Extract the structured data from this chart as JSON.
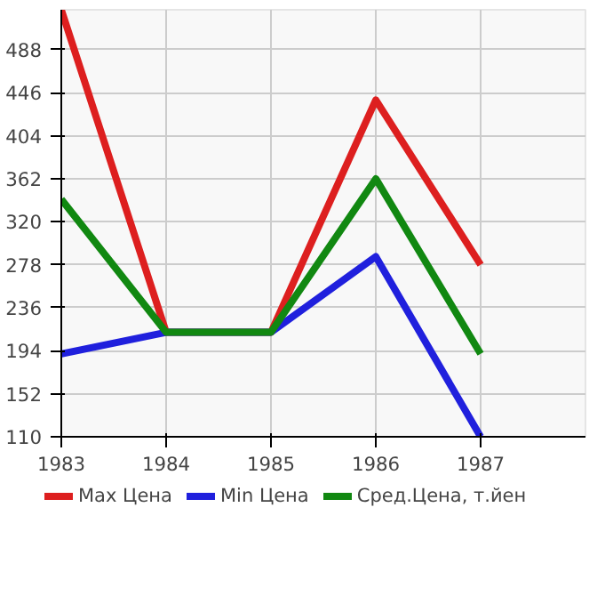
{
  "chart_data": {
    "type": "line",
    "x": [
      1983,
      1984,
      1985,
      1986,
      1987
    ],
    "series": [
      {
        "name": "Max Цена",
        "color": "#dd1f1f",
        "values": [
          527,
          212,
          212,
          439,
          278
        ]
      },
      {
        "name": "Min Цена",
        "color": "#2020dd",
        "values": [
          191,
          212,
          212,
          286,
          110
        ]
      },
      {
        "name": "Сред.Цена, т.йен",
        "color": "#118811",
        "values": [
          342,
          212,
          212,
          362,
          191
        ]
      }
    ],
    "xlim": [
      1983,
      1988
    ],
    "xticks": [
      1983,
      1984,
      1985,
      1986,
      1987
    ],
    "ylim": [
      110,
      527
    ],
    "yticks": [
      110,
      152,
      194,
      236,
      278,
      320,
      362,
      404,
      446,
      488
    ],
    "grid": true,
    "legend": "bottom",
    "marker": "none",
    "line_style": "solid"
  }
}
